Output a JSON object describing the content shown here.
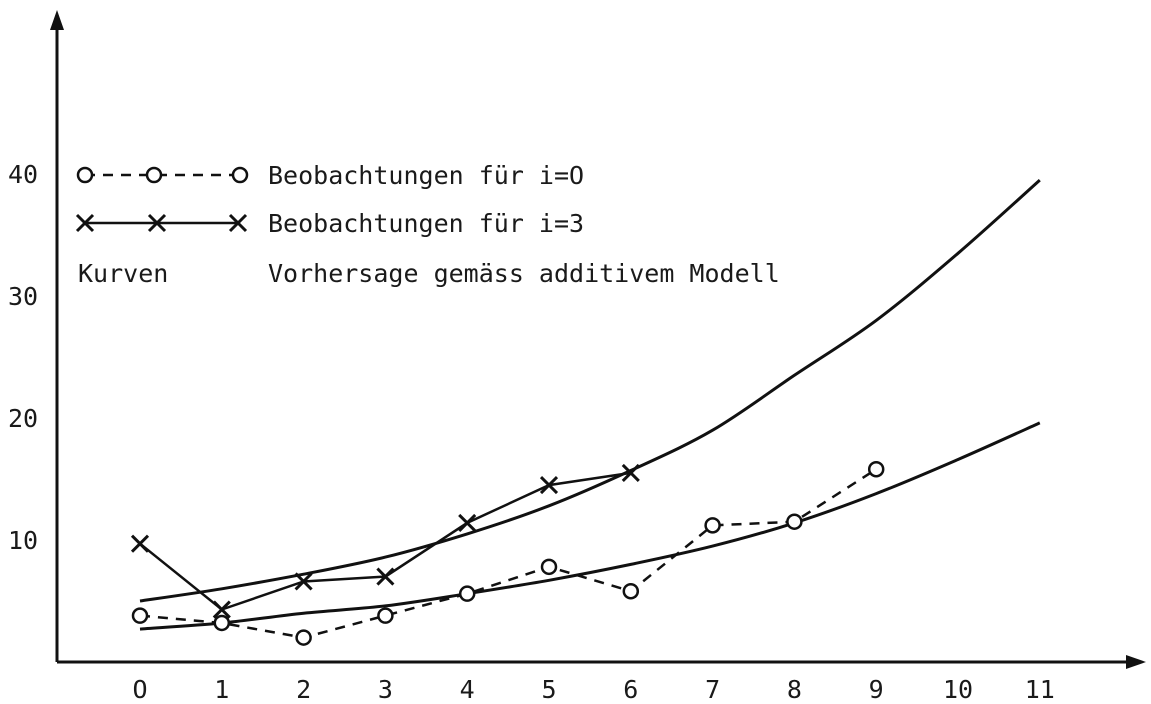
{
  "chart_data": {
    "type": "line",
    "title": "",
    "xlabel": "",
    "ylabel": "",
    "xlim": [
      -0.95,
      11.4
    ],
    "ylim": [
      0,
      50
    ],
    "x_ticks": [
      "O",
      "1",
      "2",
      "3",
      "4",
      "5",
      "6",
      "7",
      "8",
      "9",
      "10",
      "11"
    ],
    "y_ticks": [
      "10",
      "20",
      "30",
      "40"
    ],
    "grid": false,
    "legend": {
      "placement": "top-left",
      "entries": [
        {
          "symbol": "circle-dashed",
          "label": "Beobachtungen für i=O"
        },
        {
          "symbol": "cross-solid",
          "label": "Beobachtungen für i=3"
        },
        {
          "symbol": "text",
          "prefix": "Kurven",
          "label": "Vorhersage gemäss additivem Modell"
        }
      ]
    },
    "series": [
      {
        "style": "dashed-circle",
        "points": [
          [
            0,
            3.8
          ],
          [
            1,
            3.2
          ],
          [
            2,
            2.0
          ],
          [
            3,
            3.8
          ],
          [
            4,
            5.6
          ],
          [
            5,
            7.8
          ],
          [
            6,
            5.8
          ],
          [
            7,
            11.2
          ],
          [
            8,
            11.5
          ],
          [
            9,
            15.8
          ]
        ]
      },
      {
        "style": "solid-cross",
        "points": [
          [
            0,
            9.7
          ],
          [
            1,
            4.3
          ],
          [
            2,
            6.6
          ],
          [
            3,
            7.0
          ],
          [
            4,
            11.4
          ],
          [
            5,
            14.5
          ],
          [
            6,
            15.5
          ]
        ]
      }
    ],
    "curves": [
      {
        "style": "solid",
        "points": [
          [
            0,
            5.0
          ],
          [
            1,
            6.0
          ],
          [
            2,
            7.2
          ],
          [
            3,
            8.6
          ],
          [
            4,
            10.5
          ],
          [
            5,
            12.8
          ],
          [
            6,
            15.7
          ],
          [
            7,
            19.0
          ],
          [
            8,
            23.5
          ],
          [
            9,
            28.0
          ],
          [
            10,
            33.5
          ],
          [
            11,
            39.5
          ]
        ]
      },
      {
        "style": "solid",
        "points": [
          [
            0,
            2.7
          ],
          [
            1,
            3.2
          ],
          [
            2,
            4.0
          ],
          [
            3,
            4.6
          ],
          [
            4,
            5.6
          ],
          [
            5,
            6.7
          ],
          [
            6,
            8.0
          ],
          [
            7,
            9.5
          ],
          [
            8,
            11.4
          ],
          [
            9,
            13.8
          ],
          [
            10,
            16.6
          ],
          [
            11,
            19.6
          ]
        ]
      }
    ]
  }
}
